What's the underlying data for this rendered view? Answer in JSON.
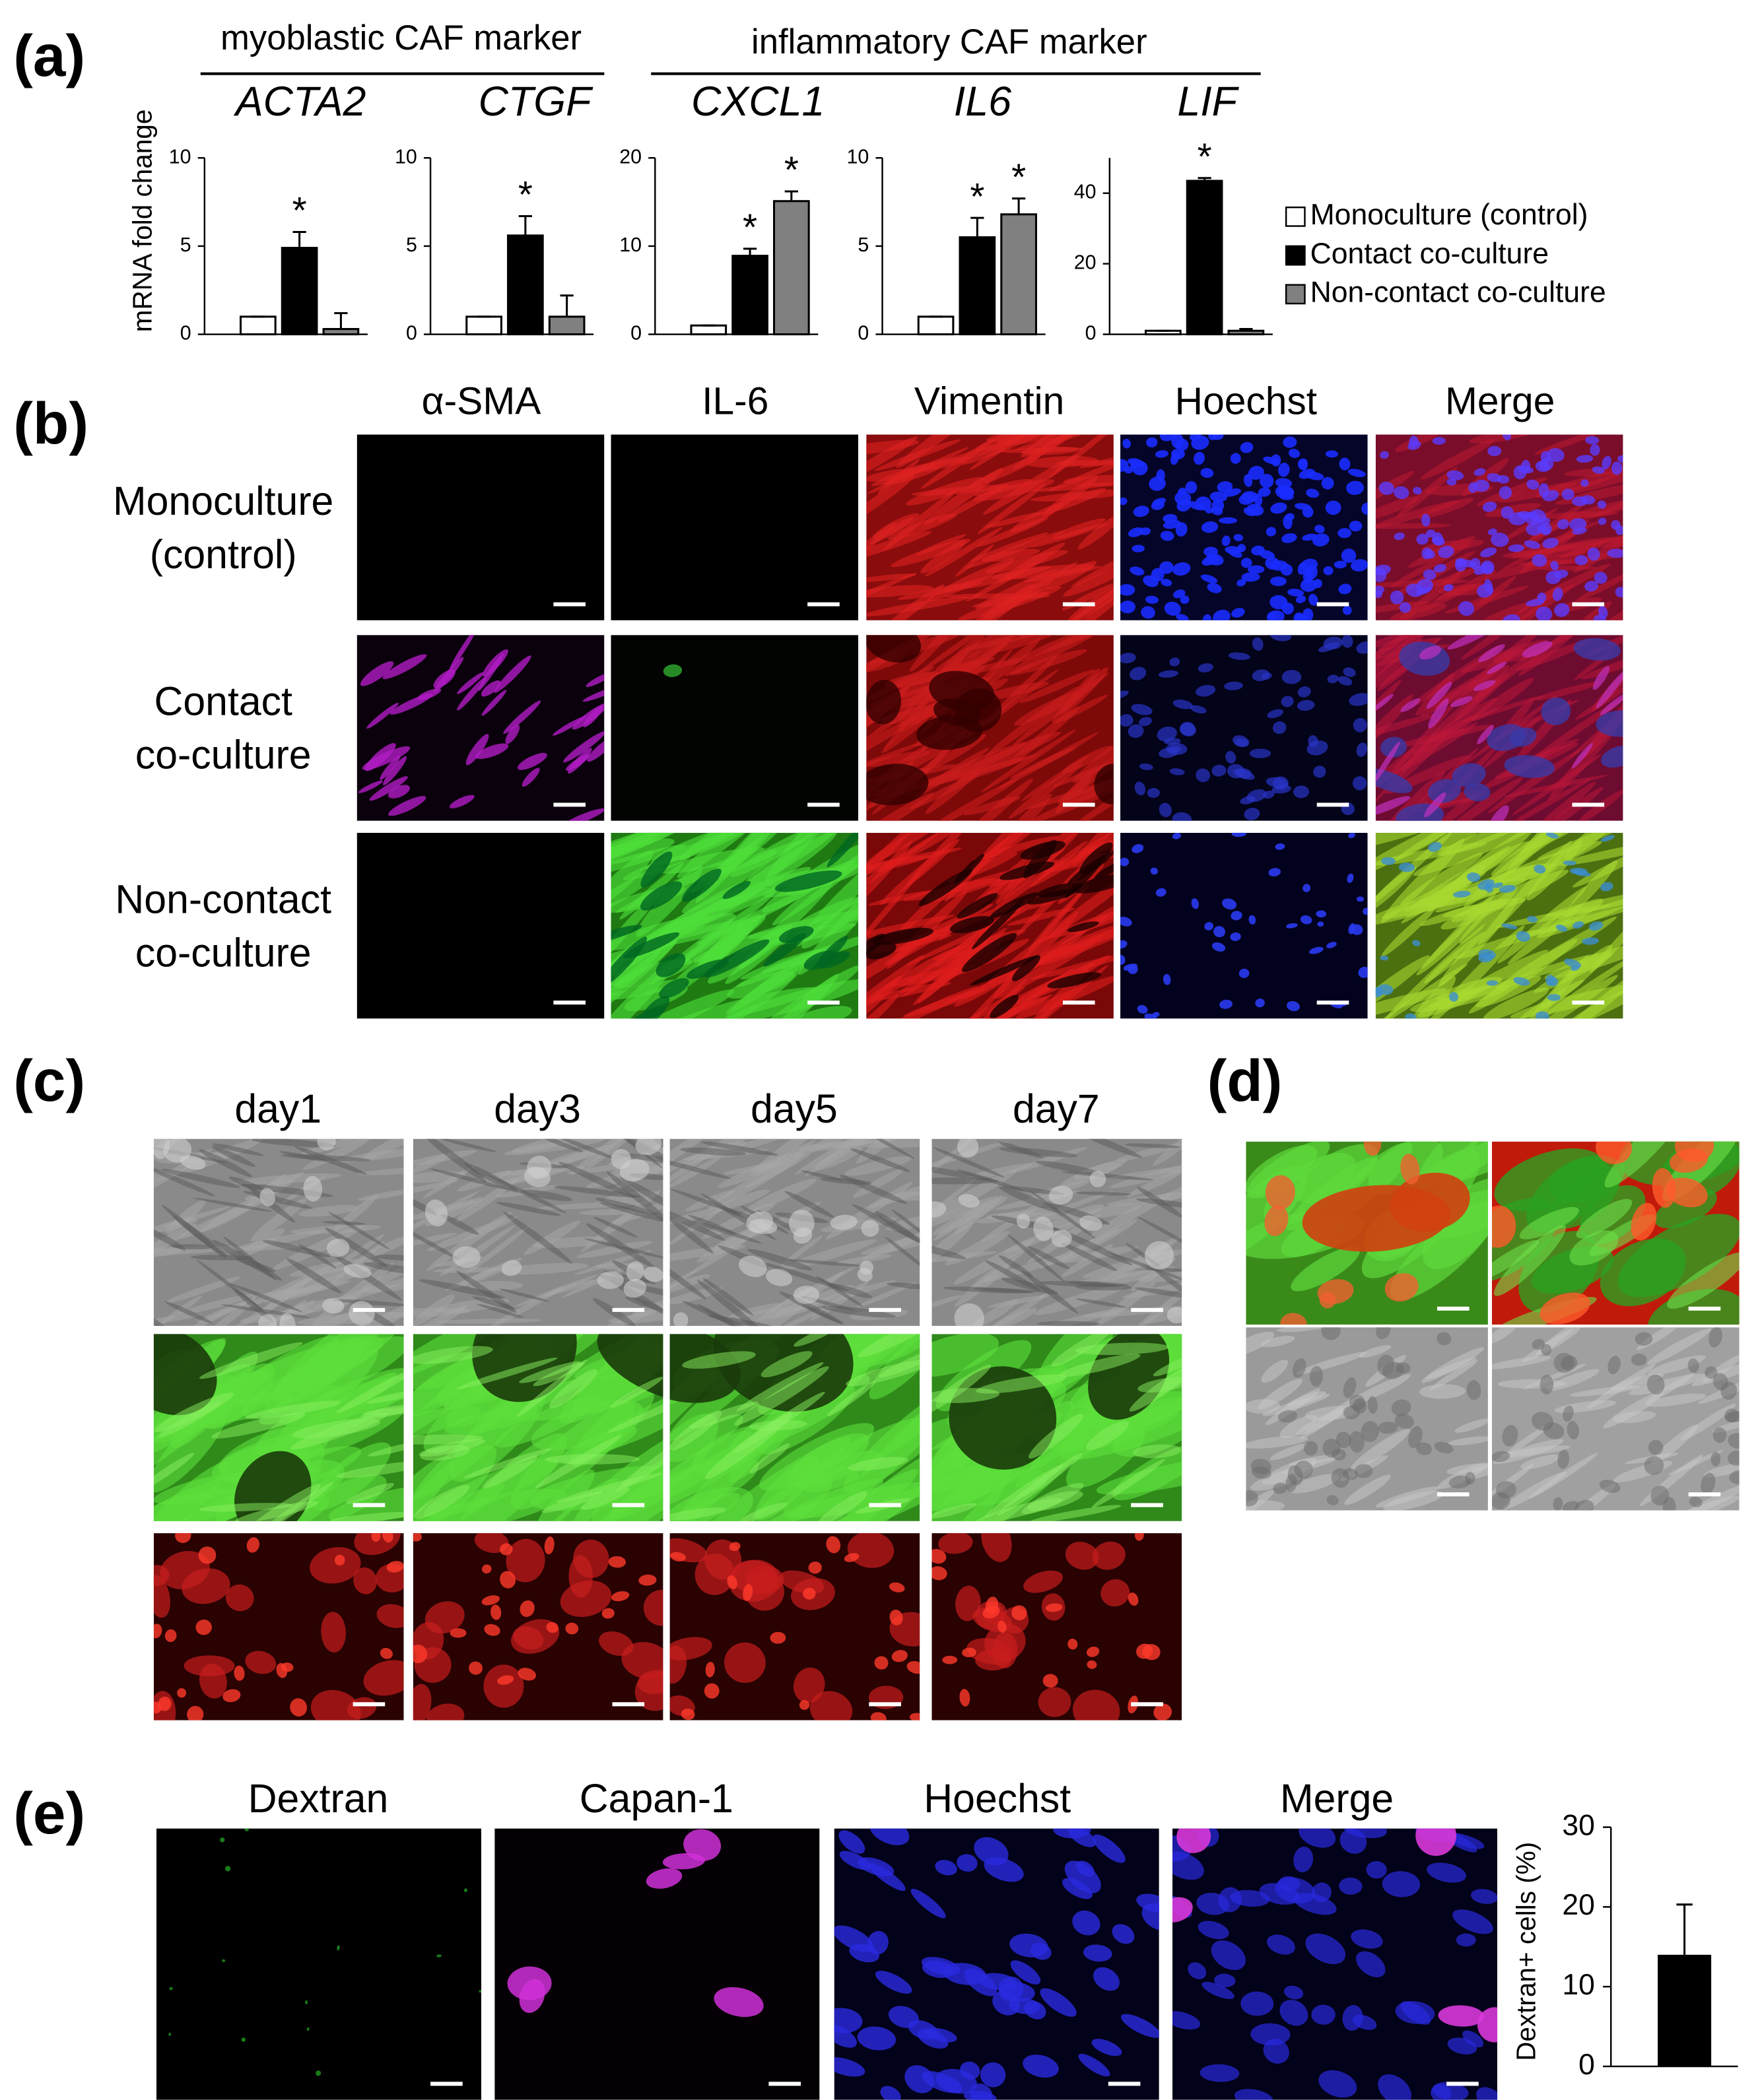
{
  "figure": {
    "a": {
      "label": "(a)"
    },
    "b": {
      "label": "(b)",
      "columns": [
        "α-SMA",
        "IL-6",
        "Vimentin",
        "Hoechst",
        "Merge"
      ],
      "rows": [
        [
          "Monoculture",
          "(control)"
        ],
        [
          "Contact",
          "co-culture"
        ],
        [
          "Non-contact",
          "co-culture"
        ]
      ]
    },
    "c": {
      "label": "(c)",
      "columns": [
        "day1",
        "day3",
        "day5",
        "day7"
      ]
    },
    "d": {
      "label": "(d)"
    },
    "e": {
      "label": "(e)",
      "columns": [
        "Dextran",
        "Capan-1",
        "Hoechst",
        "Merge"
      ]
    }
  },
  "chart_data": [
    {
      "type": "grouped-bar",
      "ylabel": "mRNA fold change",
      "group_headers": [
        "myoblastic CAF marker",
        "inflammatory CAF marker"
      ],
      "subplots": [
        {
          "title": "ACTA2",
          "ylim": [
            0,
            10
          ],
          "yticks": [
            0,
            5,
            10
          ]
        },
        {
          "title": "CTGF",
          "ylim": [
            0,
            10
          ],
          "yticks": [
            0,
            5,
            10
          ]
        },
        {
          "title": "CXCL1",
          "ylim": [
            0,
            20
          ],
          "yticks": [
            0,
            10,
            20
          ]
        },
        {
          "title": "IL6",
          "ylim": [
            0,
            10
          ],
          "yticks": [
            0,
            5,
            10
          ]
        },
        {
          "title": "LIF",
          "ylim": [
            0,
            50
          ],
          "yticks": [
            0,
            20,
            40
          ]
        }
      ],
      "series": [
        {
          "name": "Monoculture (control)",
          "color": "#ffffff",
          "values": [
            1,
            1,
            1,
            1,
            1
          ],
          "errors": [
            0,
            0,
            0,
            0,
            0
          ],
          "stars": [
            null,
            null,
            null,
            null,
            null
          ]
        },
        {
          "name": "Contact co-culture",
          "color": "#000000",
          "values": [
            4.9,
            5.6,
            8.9,
            5.5,
            43.5
          ],
          "errors": [
            0.9,
            1.1,
            0.8,
            1.1,
            0.8
          ],
          "stars": [
            "*",
            "*",
            "*",
            "*",
            "*"
          ]
        },
        {
          "name": "Non-contact co-culture",
          "color": "#808080",
          "values": [
            0.3,
            1.0,
            15.1,
            6.8,
            1
          ],
          "errors": [
            0.9,
            1.2,
            1.1,
            0.9,
            0.5
          ],
          "stars": [
            null,
            null,
            "*",
            "*",
            null
          ]
        }
      ]
    },
    {
      "type": "bar",
      "ylabel": "Dextran+ cells (%)",
      "values": [
        14
      ],
      "errors": [
        6.3
      ],
      "color": "#000000",
      "ylim": [
        0,
        30
      ],
      "yticks": [
        0,
        10,
        20,
        30
      ]
    }
  ]
}
